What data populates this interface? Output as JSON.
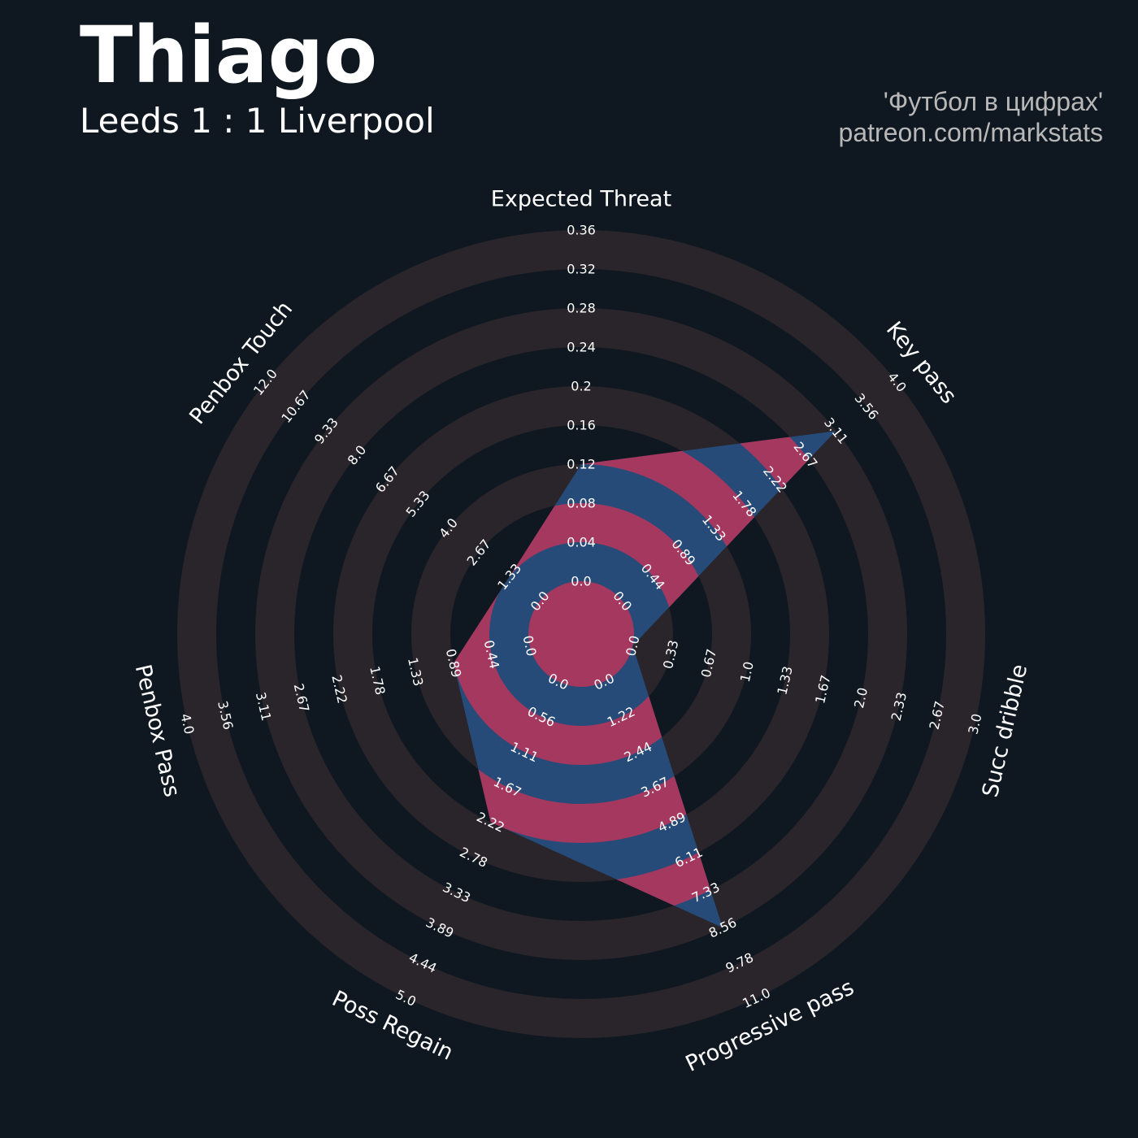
{
  "header": {
    "title": "Thiago",
    "subtitle": "Leeds 1 : 1 Liverpool",
    "credit_line1": "'Футбол в цифрах'",
    "credit_line2": "patreon.com/markstats"
  },
  "colors": {
    "background": "#0f1820",
    "ring_band": "#29252b",
    "fill_blue": "#274b78",
    "fill_pink": "#a4385f",
    "tick_label": "#ffffff",
    "credit_text": "#b8b8b8"
  },
  "chart_data": {
    "type": "radar",
    "title": "Thiago",
    "params": [
      "Expected Threat",
      "Key pass",
      "Succ dribble",
      "Progressive pass",
      "Poss Regain",
      "Penbox Pass",
      "Penbox Touch"
    ],
    "values": [
      0.12,
      3.11,
      0.0,
      8.56,
      2.22,
      0.89,
      1.33
    ],
    "ranges": [
      [
        0.0,
        0.36
      ],
      [
        0.0,
        4.0
      ],
      [
        0.0,
        3.0
      ],
      [
        0.0,
        11.0
      ],
      [
        0.0,
        5.0
      ],
      [
        0.0,
        4.0
      ],
      [
        0.0,
        12.0
      ]
    ],
    "tick_labels": [
      [
        "0.0",
        "0.04",
        "0.08",
        "0.12",
        "0.16",
        "0.2",
        "0.24",
        "0.28",
        "0.32",
        "0.36"
      ],
      [
        "0.0",
        "0.44",
        "0.89",
        "1.33",
        "1.78",
        "2.22",
        "2.67",
        "3.11",
        "3.56",
        "4.0"
      ],
      [
        "0.0",
        "0.33",
        "0.67",
        "1.0",
        "1.33",
        "1.67",
        "2.0",
        "2.33",
        "2.67",
        "3.0"
      ],
      [
        "0.0",
        "1.22",
        "2.44",
        "3.67",
        "4.89",
        "6.11",
        "7.33",
        "8.56",
        "9.78",
        "11.0"
      ],
      [
        "0.0",
        "0.56",
        "1.11",
        "1.67",
        "2.22",
        "2.78",
        "3.33",
        "3.89",
        "4.44",
        "5.0"
      ],
      [
        "0.0",
        "0.44",
        "0.89",
        "1.33",
        "1.78",
        "2.22",
        "2.67",
        "3.11",
        "3.56",
        "4.0"
      ],
      [
        "0.0",
        "1.33",
        "2.67",
        "4.0",
        "5.33",
        "6.67",
        "8.0",
        "9.33",
        "10.67",
        "12.0"
      ]
    ],
    "grid": "alternating ring bands",
    "legend": "none"
  }
}
